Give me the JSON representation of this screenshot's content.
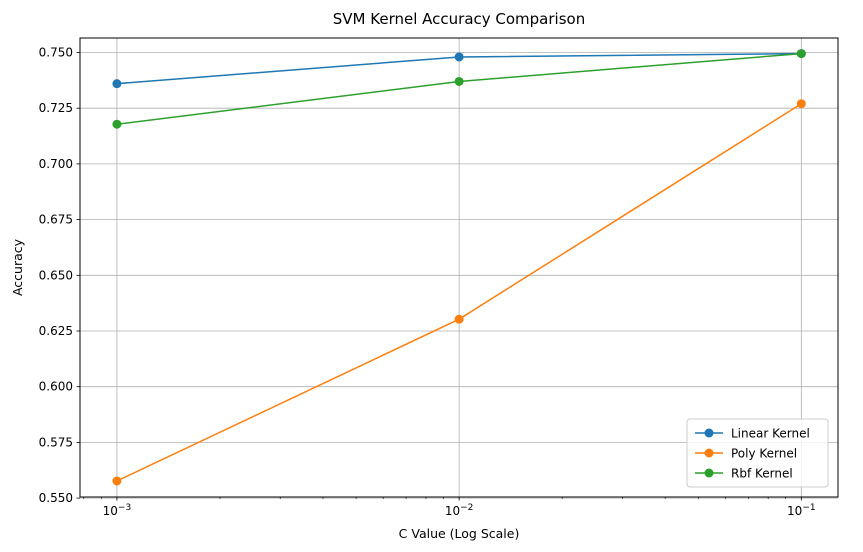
{
  "chart_data": {
    "type": "line",
    "title": "SVM Kernel Accuracy Comparison",
    "xlabel": "C Value (Log Scale)",
    "ylabel": "Accuracy",
    "x_scale": "log",
    "x": [
      0.001,
      0.01,
      0.1
    ],
    "x_tick_labels": [
      {
        "base": "10",
        "exp": "−3"
      },
      {
        "base": "10",
        "exp": "−2"
      },
      {
        "base": "10",
        "exp": "−1"
      }
    ],
    "xlim": [
      0.00078,
      0.128
    ],
    "ylim": [
      0.5505,
      0.7565
    ],
    "y_ticks": [
      0.55,
      0.575,
      0.6,
      0.625,
      0.65,
      0.675,
      0.7,
      0.725,
      0.75
    ],
    "y_tick_labels": [
      "0.550",
      "0.575",
      "0.600",
      "0.625",
      "0.650",
      "0.675",
      "0.700",
      "0.725",
      "0.750"
    ],
    "grid": true,
    "legend_position": "lower-right",
    "series": [
      {
        "name": "Linear Kernel",
        "color": "#1f77b4",
        "values": [
          0.736,
          0.748,
          0.7495
        ]
      },
      {
        "name": "Poly Kernel",
        "color": "#ff7f0e",
        "values": [
          0.5577,
          0.6303,
          0.727
        ]
      },
      {
        "name": "Rbf Kernel",
        "color": "#2ca02c",
        "values": [
          0.7178,
          0.737,
          0.7495
        ]
      }
    ]
  }
}
